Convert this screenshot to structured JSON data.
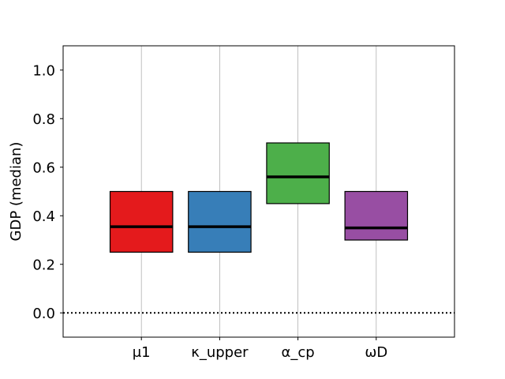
{
  "chart_data": {
    "type": "box",
    "title": "",
    "xlabel": "",
    "ylabel": "GDP (median)",
    "categories": [
      "μ1",
      "κ_upper",
      "α_cp",
      "ωD"
    ],
    "boxes": [
      {
        "category": "μ1",
        "q1": 0.25,
        "median": 0.355,
        "q3": 0.5,
        "color": "#e41a1c"
      },
      {
        "category": "κ_upper",
        "q1": 0.25,
        "median": 0.355,
        "q3": 0.5,
        "color": "#377eb8"
      },
      {
        "category": "α_cp",
        "q1": 0.45,
        "median": 0.56,
        "q3": 0.7,
        "color": "#4daf4a"
      },
      {
        "category": "ωD",
        "q1": 0.3,
        "median": 0.35,
        "q3": 0.5,
        "color": "#984ea3"
      }
    ],
    "ylim": [
      -0.1,
      1.1
    ],
    "yticks": [
      "0.0",
      "0.2",
      "0.4",
      "0.6",
      "0.8",
      "1.0"
    ],
    "reference_line": {
      "y": 0.0,
      "style": "dotted"
    },
    "grid": "vertical",
    "legend": "none"
  }
}
